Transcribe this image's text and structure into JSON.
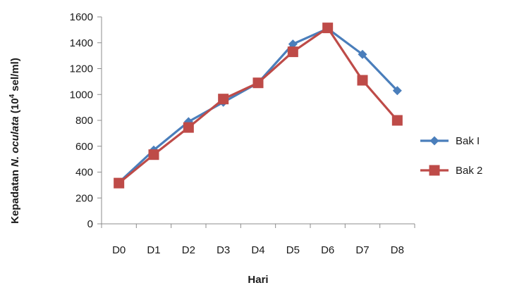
{
  "chart_data": {
    "type": "line",
    "title": "",
    "categories": [
      "D0",
      "D1",
      "D2",
      "D3",
      "D4",
      "D5",
      "D6",
      "D7",
      "D8"
    ],
    "xlabel": "Hari",
    "ylabel": {
      "prefix": "Kepadatan ",
      "species": "N.  oculata",
      "unit_open": " (10",
      "unit_sup": "4",
      "unit_close": " sel/ml)"
    },
    "ylim": [
      0,
      1600
    ],
    "yticks": [
      0,
      200,
      400,
      600,
      800,
      1000,
      1200,
      1400,
      1600
    ],
    "grid": false,
    "legend_position": "right",
    "series": [
      {
        "name": "Bak I",
        "color": "#4a7ebb",
        "marker": "diamond",
        "values": [
          320,
          570,
          790,
          940,
          1090,
          1390,
          1510,
          1310,
          1030
        ]
      },
      {
        "name": "Bak 2",
        "color": "#be4b48",
        "marker": "square",
        "values": [
          315,
          535,
          745,
          965,
          1090,
          1330,
          1515,
          1110,
          800
        ]
      }
    ]
  }
}
